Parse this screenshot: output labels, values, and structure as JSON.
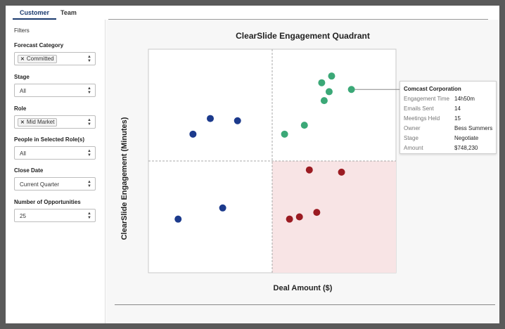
{
  "tabs": [
    {
      "label": "Customer",
      "active": true
    },
    {
      "label": "Team",
      "active": false
    }
  ],
  "sidebar": {
    "title": "Filters",
    "filters": [
      {
        "label": "Forecast Category",
        "chip": "Committed"
      },
      {
        "label": "Stage",
        "value": "All"
      },
      {
        "label": "Role",
        "chip": "Mid Market"
      },
      {
        "label": "People in Selected Role(s)",
        "value": "All"
      },
      {
        "label": "Close Date",
        "value": "Current Quarter"
      },
      {
        "label": "Number of Opportunities",
        "value": "25"
      }
    ]
  },
  "chart_data": {
    "type": "scatter",
    "title": "ClearSlide Engagement Quadrant",
    "xlabel": "Deal Amount ($)",
    "ylabel": "ClearSlide Engagement (Minutes)",
    "grid": false,
    "quadrant_dividers": true,
    "highlighted_quadrant": "bottom-right",
    "note": "Axes carry no tick labels; values below are relative positions on a 0-100 scale for both axes.",
    "series": [
      {
        "color": "#1c3a8c",
        "points": [
          [
            25,
            69
          ],
          [
            18,
            62
          ],
          [
            36,
            68
          ],
          [
            12,
            24
          ],
          [
            30,
            29
          ]
        ]
      },
      {
        "color": "#3ba877",
        "points": [
          [
            71,
            77
          ],
          [
            73,
            81
          ],
          [
            70,
            85
          ],
          [
            74,
            88
          ],
          [
            82,
            82
          ],
          [
            55,
            62
          ],
          [
            63,
            66
          ]
        ]
      },
      {
        "color": "#9b1b22",
        "points": [
          [
            65,
            46
          ],
          [
            78,
            45
          ],
          [
            57,
            24
          ],
          [
            68,
            27
          ],
          [
            61,
            25
          ]
        ]
      }
    ],
    "quadrant_color": "#f8e4e5"
  },
  "tooltip": {
    "title": "Comcast Corporation",
    "rows": [
      {
        "key": "Engagement Time",
        "value": "14h50m"
      },
      {
        "key": "Emails Sent",
        "value": "14"
      },
      {
        "key": "Meetings Held",
        "value": "15"
      },
      {
        "key": "Owner",
        "value": "Bess Summers"
      },
      {
        "key": "Stage",
        "value": "Negotiate"
      },
      {
        "key": "Amount",
        "value": "$748,230"
      }
    ]
  },
  "icons": {
    "chip_remove": "close-icon",
    "select_arrows": "updown-arrows-icon"
  }
}
